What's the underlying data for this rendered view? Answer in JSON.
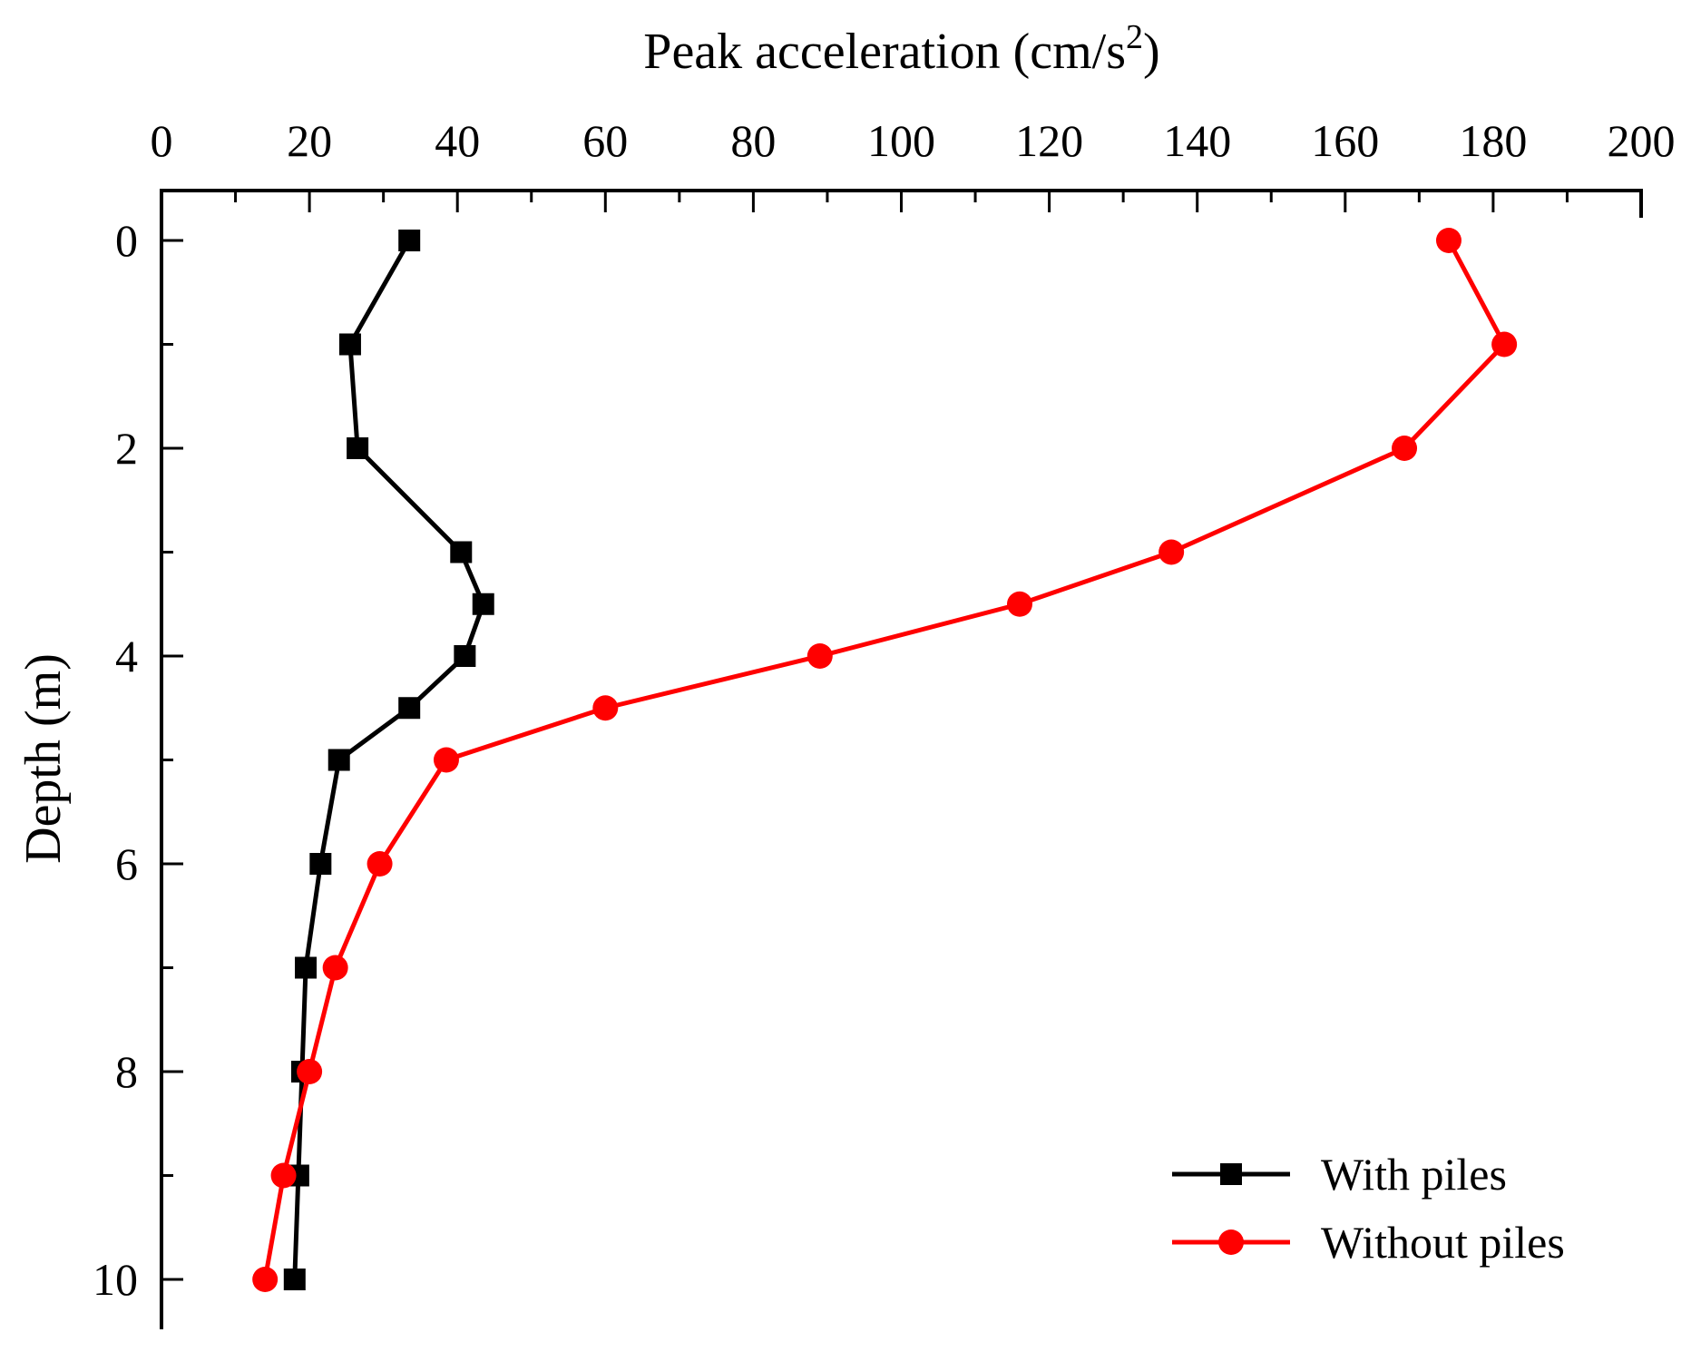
{
  "chart_data": {
    "type": "line",
    "xlabel": "Peak acceleration (cm/s",
    "xlabel_sup": "2",
    "xlabel_end": ")",
    "ylabel": "Depth (m)",
    "xlim": [
      0,
      200
    ],
    "ylim": [
      10.5,
      -0.5
    ],
    "x_ticks": [
      0,
      20,
      40,
      60,
      80,
      100,
      120,
      140,
      160,
      180,
      200
    ],
    "y_ticks": [
      0,
      2,
      4,
      6,
      8,
      10
    ],
    "x_axis_position": "top",
    "y_inverted": true,
    "legend_position": "bottom-right",
    "series": [
      {
        "name": "With piles",
        "color": "#000000",
        "marker": "square",
        "points": [
          {
            "depth": 0,
            "acc": 33.5
          },
          {
            "depth": 1,
            "acc": 25.5
          },
          {
            "depth": 2,
            "acc": 26.5
          },
          {
            "depth": 3,
            "acc": 40.5
          },
          {
            "depth": 3.5,
            "acc": 43.5
          },
          {
            "depth": 4,
            "acc": 41
          },
          {
            "depth": 4.5,
            "acc": 33.5
          },
          {
            "depth": 5,
            "acc": 24
          },
          {
            "depth": 6,
            "acc": 21.5
          },
          {
            "depth": 7,
            "acc": 19.5
          },
          {
            "depth": 8,
            "acc": 19
          },
          {
            "depth": 9,
            "acc": 18.5
          },
          {
            "depth": 10,
            "acc": 18
          }
        ]
      },
      {
        "name": "Without piles",
        "color": "#ff0000",
        "marker": "circle",
        "points": [
          {
            "depth": 0,
            "acc": 174
          },
          {
            "depth": 1,
            "acc": 181.5
          },
          {
            "depth": 2,
            "acc": 168
          },
          {
            "depth": 3,
            "acc": 136.5
          },
          {
            "depth": 3.5,
            "acc": 116
          },
          {
            "depth": 4,
            "acc": 89
          },
          {
            "depth": 4.5,
            "acc": 60
          },
          {
            "depth": 5,
            "acc": 38.5
          },
          {
            "depth": 6,
            "acc": 29.5
          },
          {
            "depth": 7,
            "acc": 23.5
          },
          {
            "depth": 8,
            "acc": 20
          },
          {
            "depth": 9,
            "acc": 16.5
          },
          {
            "depth": 10,
            "acc": 14
          }
        ]
      }
    ]
  }
}
